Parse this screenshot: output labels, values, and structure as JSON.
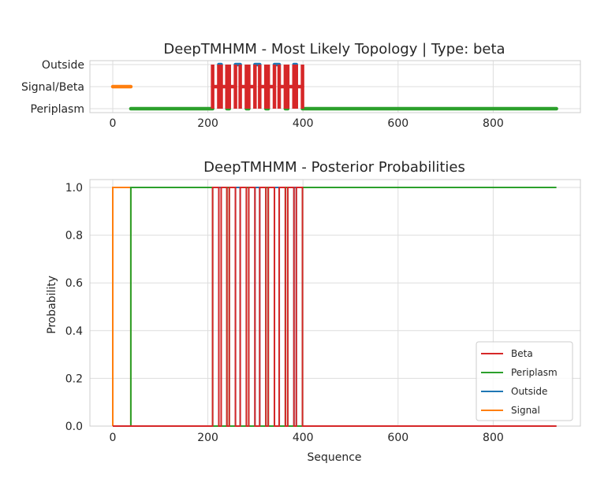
{
  "chart_data": [
    {
      "type": "line",
      "title": "DeepTMHMM - Most Likely Topology | Type: beta",
      "xlabel": "",
      "ylabel": "",
      "xlim": [
        -30,
        980
      ],
      "x_ticks": [
        0,
        200,
        400,
        600,
        800
      ],
      "x_tick_labels": [
        "0",
        "200",
        "400",
        "600",
        "800"
      ],
      "categories": [
        "Periplasm",
        "Signal/Beta",
        "Outside"
      ],
      "grid": true,
      "segments": [
        {
          "label": "Signal/Beta",
          "color": "#ff7f0e",
          "from": 0,
          "to": 38
        },
        {
          "label": "Periplasm",
          "color": "#2ca02c",
          "from": 38,
          "to": 210
        },
        {
          "label": "Signal/Beta",
          "color": "#d62728",
          "from": 210,
          "to": 223
        },
        {
          "label": "Outside",
          "color": "#1f77b4",
          "from": 223,
          "to": 228
        },
        {
          "label": "Signal/Beta",
          "color": "#d62728",
          "from": 228,
          "to": 240
        },
        {
          "label": "Periplasm",
          "color": "#2ca02c",
          "from": 240,
          "to": 245
        },
        {
          "label": "Signal/Beta",
          "color": "#d62728",
          "from": 245,
          "to": 258
        },
        {
          "label": "Outside",
          "color": "#1f77b4",
          "from": 258,
          "to": 268
        },
        {
          "label": "Signal/Beta",
          "color": "#d62728",
          "from": 268,
          "to": 281
        },
        {
          "label": "Periplasm",
          "color": "#2ca02c",
          "from": 281,
          "to": 286
        },
        {
          "label": "Signal/Beta",
          "color": "#d62728",
          "from": 286,
          "to": 299
        },
        {
          "label": "Outside",
          "color": "#1f77b4",
          "from": 299,
          "to": 309
        },
        {
          "label": "Signal/Beta",
          "color": "#d62728",
          "from": 309,
          "to": 322
        },
        {
          "label": "Periplasm",
          "color": "#2ca02c",
          "from": 322,
          "to": 327
        },
        {
          "label": "Signal/Beta",
          "color": "#d62728",
          "from": 327,
          "to": 340
        },
        {
          "label": "Outside",
          "color": "#1f77b4",
          "from": 340,
          "to": 350
        },
        {
          "label": "Signal/Beta",
          "color": "#d62728",
          "from": 350,
          "to": 363
        },
        {
          "label": "Periplasm",
          "color": "#2ca02c",
          "from": 363,
          "to": 368
        },
        {
          "label": "Signal/Beta",
          "color": "#d62728",
          "from": 368,
          "to": 381
        },
        {
          "label": "Outside",
          "color": "#1f77b4",
          "from": 381,
          "to": 386
        },
        {
          "label": "Signal/Beta",
          "color": "#d62728",
          "from": 386,
          "to": 399
        },
        {
          "label": "Periplasm",
          "color": "#2ca02c",
          "from": 399,
          "to": 933
        }
      ]
    },
    {
      "type": "line",
      "title": "DeepTMHMM - Posterior Probabilities",
      "xlabel": "Sequence",
      "ylabel": "Probability",
      "xlim": [
        -30,
        980
      ],
      "ylim": [
        0.0,
        1.03
      ],
      "x_ticks": [
        0,
        200,
        400,
        600,
        800
      ],
      "x_tick_labels": [
        "0",
        "200",
        "400",
        "600",
        "800"
      ],
      "y_ticks": [
        0.0,
        0.2,
        0.4,
        0.6,
        0.8,
        1.0
      ],
      "y_tick_labels": [
        "0.0",
        "0.2",
        "0.4",
        "0.6",
        "0.8",
        "1.0"
      ],
      "grid": true,
      "legend_position": "lower-right",
      "x_end": 933,
      "series": [
        {
          "name": "Beta",
          "color": "#d62728"
        },
        {
          "name": "Periplasm",
          "color": "#2ca02c"
        },
        {
          "name": "Outside",
          "color": "#1f77b4"
        },
        {
          "name": "Signal",
          "color": "#ff7f0e"
        }
      ]
    }
  ]
}
